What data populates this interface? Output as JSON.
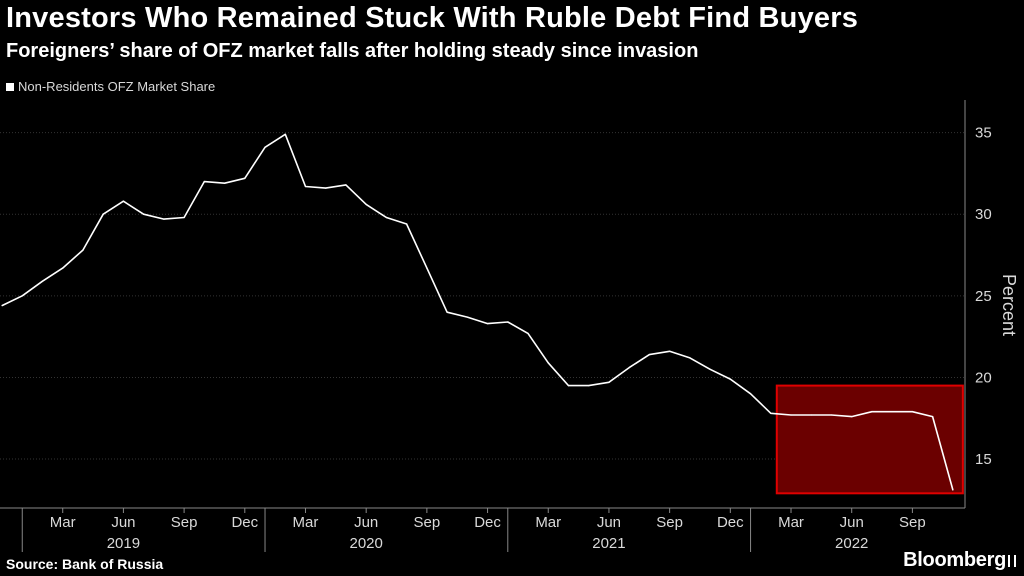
{
  "title": "Investors Who Remained Stuck With Ruble Debt Find Buyers",
  "subtitle": "Foreigners’ share of OFZ market falls after holding steady since invasion",
  "source": "Source:  Bank of Russia",
  "brand": "Bloomberg",
  "colors": {
    "background": "#000000",
    "line": "#ffffff",
    "highlight_fill": "#6b0000",
    "highlight_stroke": "#e00000",
    "grid": "#333333"
  },
  "chart_data": {
    "type": "line",
    "ylabel": "Percent",
    "ylim": [
      12,
      37
    ],
    "yticks": [
      15,
      20,
      25,
      30,
      35
    ],
    "grid": true,
    "legend_position": "top-left",
    "series": [
      {
        "name": "Non-Residents OFZ Market Share",
        "x": [
          "2018-12",
          "2019-01",
          "2019-02",
          "2019-03",
          "2019-04",
          "2019-05",
          "2019-06",
          "2019-07",
          "2019-08",
          "2019-09",
          "2019-10",
          "2019-11",
          "2019-12",
          "2020-01",
          "2020-02",
          "2020-03",
          "2020-04",
          "2020-05",
          "2020-06",
          "2020-07",
          "2020-08",
          "2020-09",
          "2020-10",
          "2020-11",
          "2020-12",
          "2021-01",
          "2021-02",
          "2021-03",
          "2021-04",
          "2021-05",
          "2021-06",
          "2021-07",
          "2021-08",
          "2021-09",
          "2021-10",
          "2021-11",
          "2021-12",
          "2022-01",
          "2022-02",
          "2022-03",
          "2022-04",
          "2022-05",
          "2022-06",
          "2022-07",
          "2022-08",
          "2022-09",
          "2022-10",
          "2022-11"
        ],
        "values": [
          24.4,
          25.0,
          25.9,
          26.7,
          27.8,
          30.0,
          30.8,
          30.0,
          29.7,
          29.8,
          32.0,
          31.9,
          32.2,
          34.1,
          34.9,
          31.7,
          31.6,
          31.8,
          30.6,
          29.8,
          29.4,
          26.7,
          24.0,
          23.7,
          23.3,
          23.4,
          22.7,
          20.9,
          19.5,
          19.5,
          19.7,
          20.6,
          21.4,
          21.6,
          21.2,
          20.5,
          19.9,
          19.0,
          17.8,
          17.7,
          17.7,
          17.7,
          17.6,
          17.9,
          17.9,
          17.9,
          17.6,
          13.1
        ]
      }
    ],
    "month_ticks": [
      {
        "label": "Mar",
        "x": "2019-03"
      },
      {
        "label": "Jun",
        "x": "2019-06"
      },
      {
        "label": "Sep",
        "x": "2019-09"
      },
      {
        "label": "Dec",
        "x": "2019-12"
      },
      {
        "label": "Mar",
        "x": "2020-03"
      },
      {
        "label": "Jun",
        "x": "2020-06"
      },
      {
        "label": "Sep",
        "x": "2020-09"
      },
      {
        "label": "Dec",
        "x": "2020-12"
      },
      {
        "label": "Mar",
        "x": "2021-03"
      },
      {
        "label": "Jun",
        "x": "2021-06"
      },
      {
        "label": "Sep",
        "x": "2021-09"
      },
      {
        "label": "Dec",
        "x": "2021-12"
      },
      {
        "label": "Mar",
        "x": "2022-03"
      },
      {
        "label": "Jun",
        "x": "2022-06"
      },
      {
        "label": "Sep",
        "x": "2022-09"
      }
    ],
    "year_ticks": [
      {
        "label": "2019",
        "x": "2019-06"
      },
      {
        "label": "2020",
        "x": "2020-06"
      },
      {
        "label": "2021",
        "x": "2021-06"
      },
      {
        "label": "2022",
        "x": "2022-06"
      }
    ],
    "highlight": {
      "x_start": "2022-02",
      "x_end": "2022-11",
      "y_min": 12.9,
      "y_max": 19.5
    }
  }
}
